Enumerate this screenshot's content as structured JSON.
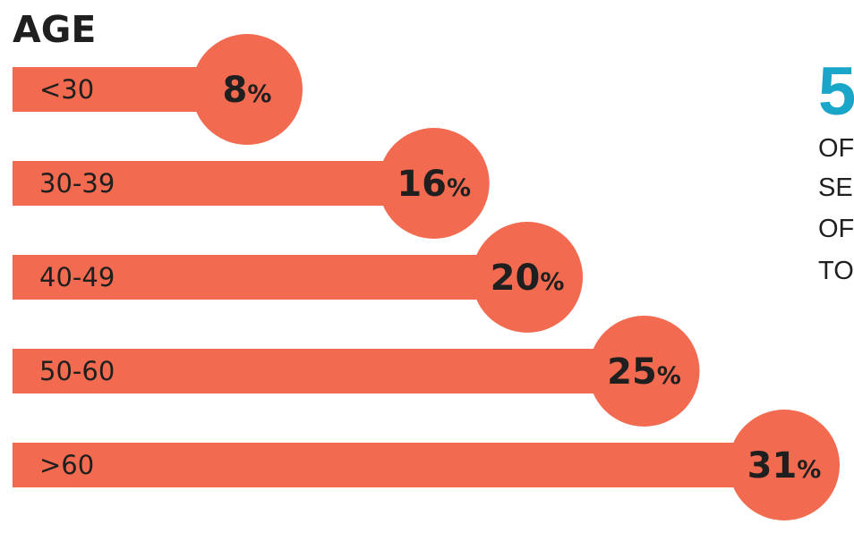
{
  "colors": {
    "bar": "#f26b50",
    "text": "#1f1f1f",
    "accent": "#1aa6c8"
  },
  "chart_data": {
    "type": "bar",
    "orientation": "horizontal",
    "title": "AGE",
    "categories": [
      "<30",
      "30-39",
      "40-49",
      "50-60",
      ">60"
    ],
    "values": [
      8,
      16,
      20,
      25,
      31
    ],
    "value_labels": [
      "8",
      "16",
      "20",
      "25",
      "31"
    ],
    "value_suffix": "%",
    "xlim": [
      0,
      31
    ],
    "grid": false,
    "legend": "none"
  },
  "side_note": {
    "number": "5",
    "lines": [
      "OF",
      "SE",
      "OF",
      "TO"
    ]
  }
}
